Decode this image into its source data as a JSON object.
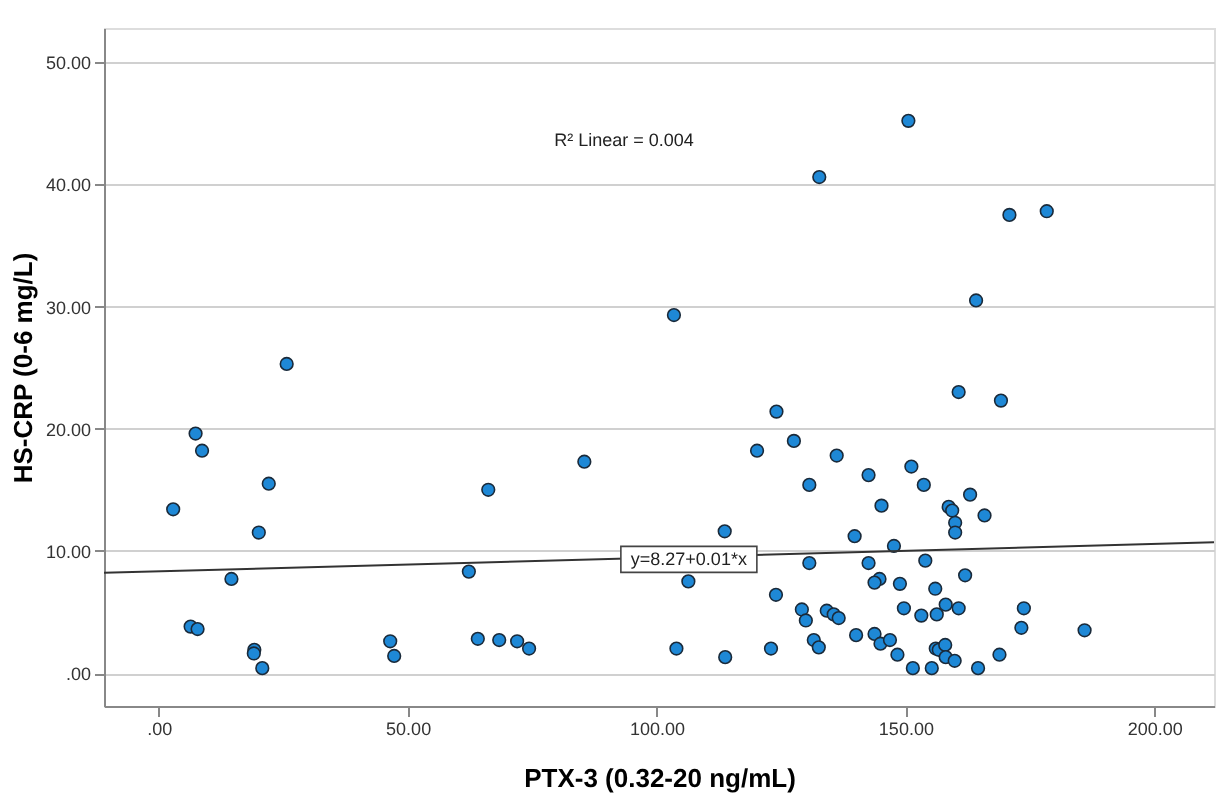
{
  "chart_data": {
    "type": "scatter",
    "xlabel": "PTX-3 (0.32-20 ng/mL)",
    "ylabel": "HS-CRP (0-6 mg/L)",
    "annotations": [
      "R² Linear = 0.004",
      {
        "text": "y=8.27+0.01*x",
        "x": 106.5,
        "y": 9.3
      }
    ],
    "xlim": [
      -11,
      212
    ],
    "ylim": [
      -2.7,
      52.8
    ],
    "xticks": [
      {
        "value": 0,
        "label": ".00"
      },
      {
        "value": 50,
        "label": "50.00"
      },
      {
        "value": 100,
        "label": "100.00"
      },
      {
        "value": 150,
        "label": "150.00"
      },
      {
        "value": 200,
        "label": "200.00"
      }
    ],
    "yticks": [
      {
        "value": 0,
        "label": ".00"
      },
      {
        "value": 10,
        "label": "10.00"
      },
      {
        "value": 20,
        "label": "20.00"
      },
      {
        "value": 30,
        "label": "30.00"
      },
      {
        "value": 40,
        "label": "40.00"
      },
      {
        "value": 50,
        "label": "50.00"
      }
    ],
    "grid": "y",
    "series": [
      {
        "color": "#1e88d6",
        "marker": "circle",
        "x": [
          2.9,
          7.4,
          8.7,
          25.7,
          22.1,
          20.1,
          14.6,
          6.4,
          7.8,
          19.2,
          19.1,
          20.8,
          46.5,
          47.3,
          62.3,
          66.2,
          64.1,
          68.4,
          72.0,
          74.4,
          85.5,
          150.6,
          132.7,
          170.9,
          178.4,
          164.2,
          103.5,
          160.7,
          169.2,
          124.1,
          120.2,
          127.6,
          136.2,
          151.2,
          142.6,
          153.7,
          130.7,
          145.2,
          158.7,
          159.4,
          163.0,
          165.9,
          160.0,
          160.0,
          113.7,
          139.8,
          147.7,
          130.7,
          142.6,
          154.0,
          162.0,
          106.4,
          144.8,
          143.8,
          148.9,
          156.0,
          124.0,
          129.2,
          130.0,
          134.2,
          135.6,
          136.6,
          149.7,
          153.2,
          156.3,
          158.1,
          160.7,
          173.8,
          173.3,
          186.0,
          104.0,
          113.8,
          123.0,
          131.6,
          132.6,
          140.1,
          143.8,
          145.0,
          146.9,
          148.4,
          151.5,
          155.3,
          156.1,
          156.7,
          158.0,
          158.1,
          159.9,
          164.6,
          168.9
        ],
        "values": [
          13.4,
          19.6,
          18.2,
          25.3,
          15.5,
          11.5,
          7.7,
          3.8,
          3.6,
          1.9,
          1.6,
          0.4,
          2.6,
          1.4,
          8.3,
          15.0,
          2.8,
          2.7,
          2.6,
          2.0,
          17.3,
          45.2,
          40.6,
          37.5,
          37.8,
          30.5,
          29.3,
          23.0,
          22.3,
          21.4,
          18.2,
          19.0,
          17.8,
          16.9,
          16.2,
          15.4,
          15.4,
          13.7,
          13.6,
          13.3,
          14.6,
          12.9,
          12.3,
          11.5,
          11.6,
          11.2,
          10.4,
          9.0,
          9.0,
          9.2,
          8.0,
          7.5,
          7.7,
          7.4,
          7.3,
          6.9,
          6.4,
          5.2,
          4.3,
          5.1,
          4.8,
          4.5,
          5.3,
          4.7,
          4.8,
          5.6,
          5.3,
          5.3,
          3.7,
          3.5,
          2.0,
          1.3,
          2.0,
          2.7,
          2.1,
          3.1,
          3.2,
          2.4,
          2.7,
          1.5,
          0.4,
          0.4,
          2.0,
          1.9,
          2.3,
          1.3,
          1.0,
          0.4,
          1.5
        ]
      },
      {
        "type": "line",
        "marker": "none",
        "color": "#333333",
        "x": [
          -11,
          212
        ],
        "values": [
          8.2,
          10.7
        ]
      }
    ]
  }
}
